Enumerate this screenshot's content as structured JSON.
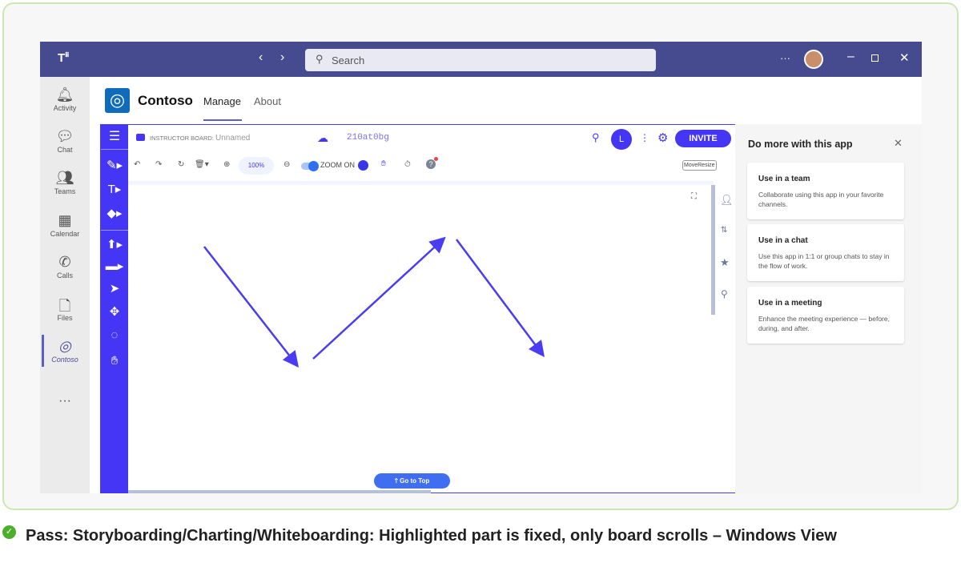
{
  "titlebar": {
    "search_placeholder": "Search",
    "more": "···"
  },
  "rail": {
    "items": [
      {
        "label": "Activity",
        "icon": "bell-icon"
      },
      {
        "label": "Chat",
        "icon": "chat-icon"
      },
      {
        "label": "Teams",
        "icon": "teams-icon"
      },
      {
        "label": "Calendar",
        "icon": "calendar-icon"
      },
      {
        "label": "Calls",
        "icon": "phone-icon"
      },
      {
        "label": "Files",
        "icon": "file-icon"
      },
      {
        "label": "Contoso",
        "icon": "contoso-icon",
        "active": true
      }
    ],
    "more": "···"
  },
  "app": {
    "name": "Contoso",
    "tabs": [
      {
        "label": "Manage",
        "active": true
      },
      {
        "label": "About"
      }
    ]
  },
  "board": {
    "label": "INSTRUCTOR BOARD:",
    "name": "Unnamed",
    "code": "210at0bg",
    "avatar": "L",
    "invite": "INVITE",
    "zoom_level": "100%",
    "zoom_toggle": "ZOOM ON",
    "move_resize": "MoveResize",
    "go_to_top": "Go to Top",
    "accent": "#4536f5"
  },
  "panel": {
    "title": "Do more with this app",
    "cards": [
      {
        "title": "Use in a team",
        "desc": "Collaborate using this app in your favorite channels."
      },
      {
        "title": "Use in a chat",
        "desc": "Use this app in 1:1 or group chats to stay in the flow of work."
      },
      {
        "title": "Use in a meeting",
        "desc": "Enhance the meeting experience — before, during, and after."
      }
    ]
  },
  "caption": "Pass: Storyboarding/Charting/Whiteboarding: Highlighted part is fixed, only board scrolls – Windows View"
}
